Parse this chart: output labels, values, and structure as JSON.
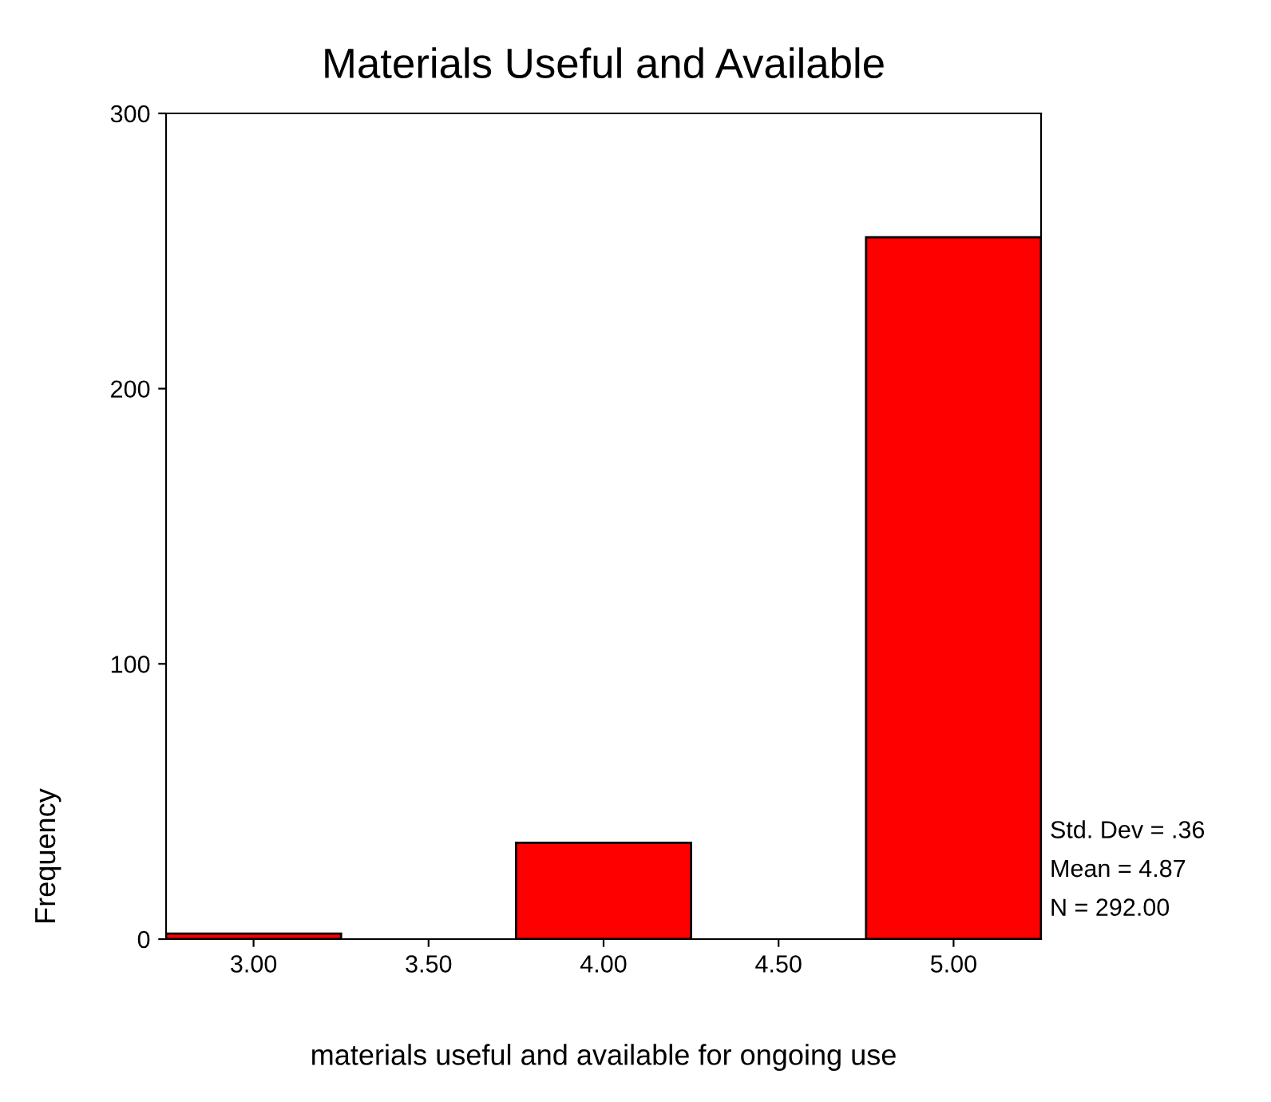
{
  "chart_data": {
    "type": "histogram",
    "title": "Materials Useful and Available",
    "xlabel": "materials useful and available for ongoing use",
    "ylabel": "Frequency",
    "bins": [
      2.75,
      3.25,
      3.75,
      4.25,
      4.75,
      5.25
    ],
    "values": [
      2,
      0,
      35,
      0,
      255
    ],
    "color": "#ff0000",
    "xlim": [
      2.75,
      5.25
    ],
    "xticks": [
      {
        "value": 3,
        "label": "3.00"
      },
      {
        "value": 3.5,
        "label": "3.50"
      },
      {
        "value": 4,
        "label": "4.00"
      },
      {
        "value": 4.5,
        "label": "4.50"
      },
      {
        "value": 5,
        "label": "5.00"
      }
    ],
    "ylim": [
      0,
      300
    ],
    "yticks": [
      0,
      100,
      200,
      300
    ],
    "grid": false,
    "annotations": [
      "Std. Dev = .36",
      "Mean = 4.87",
      "N = 292.00"
    ]
  }
}
